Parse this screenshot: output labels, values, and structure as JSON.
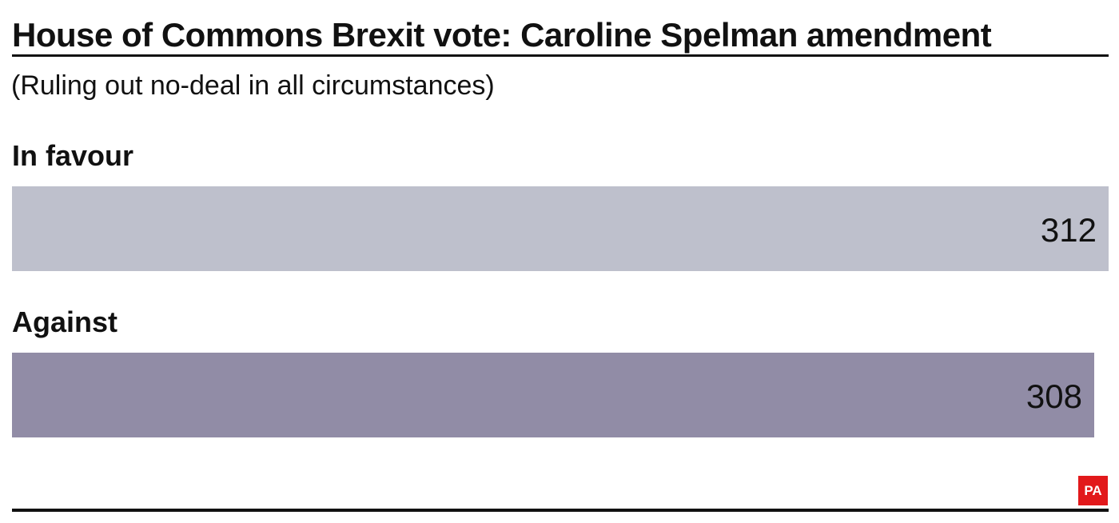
{
  "chart_data": {
    "type": "bar",
    "title": "House of Commons Brexit vote: Caroline Spelman amendment",
    "subtitle": "(Ruling out no-deal in all circumstances)",
    "categories": [
      "In favour",
      "Against"
    ],
    "values": [
      312,
      308
    ],
    "value_labels": [
      "312",
      "308"
    ],
    "colors": [
      "#bec0cc",
      "#918ca6"
    ],
    "orientation": "horizontal",
    "grid": false
  },
  "logo": {
    "text": "PA",
    "color": "#e2191b"
  }
}
